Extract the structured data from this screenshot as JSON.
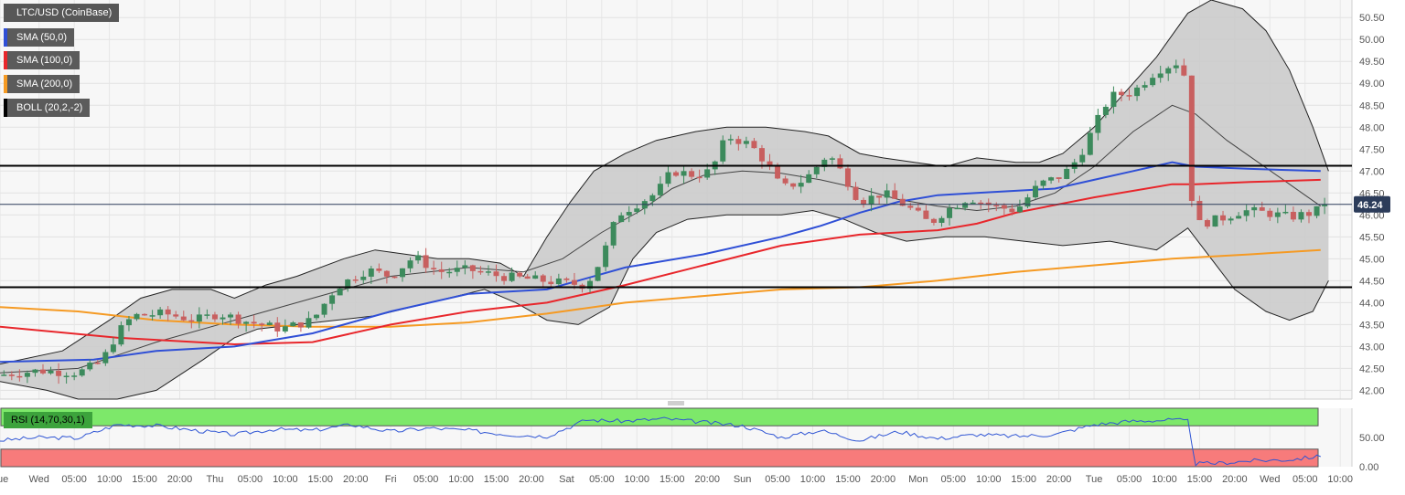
{
  "legend": {
    "instrument": "LTC/USD (CoinBase)",
    "sma50": "SMA (50,0)",
    "sma100": "SMA (100,0)",
    "sma200": "SMA (200,0)",
    "boll": "BOLL (20,2,-2)",
    "rsi": "RSI (14,70,30,1)"
  },
  "colors": {
    "sma50": "#2f4fd6",
    "sma100": "#e8262b",
    "sma200": "#f59a23",
    "bull": "#3c8a5c",
    "bear": "#c85f5f",
    "rsi_overbought": "#7de86a",
    "rsi_oversold": "#f77b7b",
    "rsi_line": "#2f55d4",
    "price_tag": "#2c3c5a"
  },
  "chart_data": [
    {
      "type": "candlestick",
      "title": "LTC/USD (CoinBase)",
      "ylim": [
        41.8,
        50.9
      ],
      "y_ticks": [
        "42.00",
        "42.50",
        "43.00",
        "43.50",
        "44.00",
        "44.50",
        "45.00",
        "45.50",
        "46.00",
        "46.50",
        "47.00",
        "47.50",
        "48.00",
        "48.50",
        "49.00",
        "49.50",
        "50.00",
        "50.50"
      ],
      "x_ticks": [
        "Tue",
        "Wed",
        "05:00",
        "10:00",
        "15:00",
        "20:00",
        "Thu",
        "05:00",
        "10:00",
        "15:00",
        "20:00",
        "Fri",
        "05:00",
        "10:00",
        "15:00",
        "20:00",
        "Sat",
        "05:00",
        "10:00",
        "15:00",
        "20:00",
        "Sun",
        "05:00",
        "10:00",
        "15:00",
        "20:00",
        "Mon",
        "05:00",
        "10:00",
        "15:00",
        "20:00",
        "Tue",
        "05:00",
        "10:00",
        "15:00",
        "20:00",
        "Wed",
        "05:00",
        "10:00"
      ],
      "x_range_hours": [
        0,
        173
      ],
      "last_price": "46.24",
      "last_price_value": 46.24,
      "horizontal_levels": [
        47.12,
        44.35
      ],
      "price_path": [
        [
          0,
          42.35
        ],
        [
          5,
          42.45
        ],
        [
          10,
          42.4
        ],
        [
          13,
          42.65
        ],
        [
          15,
          43.3
        ],
        [
          17,
          43.7
        ],
        [
          21,
          43.75
        ],
        [
          25,
          43.6
        ],
        [
          28,
          43.75
        ],
        [
          32,
          43.55
        ],
        [
          36,
          43.4
        ],
        [
          40,
          43.6
        ],
        [
          43,
          44.35
        ],
        [
          47,
          44.75
        ],
        [
          50,
          44.6
        ],
        [
          53,
          45.05
        ],
        [
          56,
          44.7
        ],
        [
          60,
          44.75
        ],
        [
          64,
          44.6
        ],
        [
          67,
          44.55
        ],
        [
          72,
          44.45
        ],
        [
          75,
          44.4
        ],
        [
          77,
          45.0
        ],
        [
          79,
          46.0
        ],
        [
          81,
          46.2
        ],
        [
          84,
          46.5
        ],
        [
          86,
          47.0
        ],
        [
          89,
          46.9
        ],
        [
          91,
          47.0
        ],
        [
          93,
          47.8
        ],
        [
          96,
          47.6
        ],
        [
          98,
          47.2
        ],
        [
          100,
          46.6
        ],
        [
          103,
          46.8
        ],
        [
          106,
          47.4
        ],
        [
          108,
          46.9
        ],
        [
          110,
          46.3
        ],
        [
          113,
          46.5
        ],
        [
          116,
          46.2
        ],
        [
          119,
          45.8
        ],
        [
          121,
          46.1
        ],
        [
          124,
          46.4
        ],
        [
          127,
          46.2
        ],
        [
          130,
          46.1
        ],
        [
          133,
          46.7
        ],
        [
          136,
          46.9
        ],
        [
          138,
          47.3
        ],
        [
          140,
          48.0
        ],
        [
          142,
          48.7
        ],
        [
          145,
          48.8
        ],
        [
          148,
          49.3
        ],
        [
          151,
          49.5
        ],
        [
          152,
          48.9
        ],
        [
          152.5,
          46.4
        ],
        [
          153.5,
          45.8
        ],
        [
          156,
          45.9
        ],
        [
          159,
          46.1
        ],
        [
          162,
          46.05
        ],
        [
          165,
          45.95
        ],
        [
          168,
          46.05
        ],
        [
          170,
          46.24
        ]
      ],
      "sma50": [
        [
          0,
          42.65
        ],
        [
          12,
          42.7
        ],
        [
          20,
          42.9
        ],
        [
          30,
          43.0
        ],
        [
          40,
          43.3
        ],
        [
          50,
          43.8
        ],
        [
          60,
          44.2
        ],
        [
          70,
          44.3
        ],
        [
          80,
          44.8
        ],
        [
          90,
          45.1
        ],
        [
          100,
          45.5
        ],
        [
          105,
          45.75
        ],
        [
          110,
          46.05
        ],
        [
          115,
          46.3
        ],
        [
          120,
          46.45
        ],
        [
          125,
          46.5
        ],
        [
          130,
          46.55
        ],
        [
          135,
          46.6
        ],
        [
          140,
          46.8
        ],
        [
          145,
          47.0
        ],
        [
          150,
          47.2
        ],
        [
          153,
          47.1
        ],
        [
          160,
          47.05
        ],
        [
          169,
          47.0
        ]
      ],
      "sma100": [
        [
          0,
          43.45
        ],
        [
          15,
          43.2
        ],
        [
          30,
          43.05
        ],
        [
          40,
          43.1
        ],
        [
          50,
          43.5
        ],
        [
          60,
          43.8
        ],
        [
          70,
          44.0
        ],
        [
          80,
          44.4
        ],
        [
          90,
          44.85
        ],
        [
          100,
          45.3
        ],
        [
          110,
          45.55
        ],
        [
          120,
          45.65
        ],
        [
          125,
          45.8
        ],
        [
          130,
          46.05
        ],
        [
          140,
          46.4
        ],
        [
          150,
          46.7
        ],
        [
          153,
          46.7
        ],
        [
          160,
          46.75
        ],
        [
          169,
          46.8
        ]
      ],
      "sma200": [
        [
          0,
          43.9
        ],
        [
          10,
          43.8
        ],
        [
          20,
          43.6
        ],
        [
          30,
          43.5
        ],
        [
          40,
          43.45
        ],
        [
          50,
          43.45
        ],
        [
          60,
          43.55
        ],
        [
          70,
          43.75
        ],
        [
          80,
          44.0
        ],
        [
          90,
          44.15
        ],
        [
          100,
          44.3
        ],
        [
          110,
          44.35
        ],
        [
          120,
          44.5
        ],
        [
          130,
          44.7
        ],
        [
          140,
          44.85
        ],
        [
          150,
          45.0
        ],
        [
          160,
          45.1
        ],
        [
          169,
          45.2
        ]
      ],
      "bollinger_upper": [
        [
          0,
          42.6
        ],
        [
          8,
          42.9
        ],
        [
          14,
          43.6
        ],
        [
          18,
          44.1
        ],
        [
          22,
          44.3
        ],
        [
          27,
          44.3
        ],
        [
          30,
          44.1
        ],
        [
          34,
          44.4
        ],
        [
          38,
          44.6
        ],
        [
          44,
          45.0
        ],
        [
          48,
          45.2
        ],
        [
          52,
          45.1
        ],
        [
          56,
          45.0
        ],
        [
          60,
          45.0
        ],
        [
          64,
          44.9
        ],
        [
          67,
          44.6
        ],
        [
          70,
          45.5
        ],
        [
          73,
          46.3
        ],
        [
          76,
          47.0
        ],
        [
          80,
          47.4
        ],
        [
          84,
          47.7
        ],
        [
          89,
          47.9
        ],
        [
          93,
          48.0
        ],
        [
          98,
          48.0
        ],
        [
          103,
          47.9
        ],
        [
          106,
          47.8
        ],
        [
          110,
          47.4
        ],
        [
          113,
          47.3
        ],
        [
          117,
          47.2
        ],
        [
          121,
          47.1
        ],
        [
          125,
          47.3
        ],
        [
          130,
          47.2
        ],
        [
          133,
          47.2
        ],
        [
          136,
          47.4
        ],
        [
          140,
          48.0
        ],
        [
          144,
          48.8
        ],
        [
          148,
          49.6
        ],
        [
          152,
          50.6
        ],
        [
          155,
          50.9
        ],
        [
          159,
          50.7
        ],
        [
          162,
          50.2
        ],
        [
          165,
          49.3
        ],
        [
          168,
          48.0
        ],
        [
          170,
          47.0
        ]
      ],
      "bollinger_middle": [
        [
          0,
          42.4
        ],
        [
          10,
          42.5
        ],
        [
          20,
          43.1
        ],
        [
          30,
          43.6
        ],
        [
          40,
          44.1
        ],
        [
          50,
          44.6
        ],
        [
          60,
          44.8
        ],
        [
          67,
          44.7
        ],
        [
          72,
          45.0
        ],
        [
          77,
          45.6
        ],
        [
          82,
          46.1
        ],
        [
          86,
          46.6
        ],
        [
          90,
          46.9
        ],
        [
          95,
          47.0
        ],
        [
          100,
          46.95
        ],
        [
          105,
          46.8
        ],
        [
          110,
          46.6
        ],
        [
          115,
          46.35
        ],
        [
          120,
          46.2
        ],
        [
          125,
          46.1
        ],
        [
          130,
          46.2
        ],
        [
          135,
          46.5
        ],
        [
          140,
          47.1
        ],
        [
          145,
          47.9
        ],
        [
          150,
          48.5
        ],
        [
          153,
          48.3
        ],
        [
          157,
          47.7
        ],
        [
          161,
          47.2
        ],
        [
          165,
          46.7
        ],
        [
          169,
          46.2
        ]
      ],
      "bollinger_lower": [
        [
          0,
          42.2
        ],
        [
          6,
          42.0
        ],
        [
          10,
          41.8
        ],
        [
          15,
          41.8
        ],
        [
          20,
          42.0
        ],
        [
          26,
          42.7
        ],
        [
          30,
          43.2
        ],
        [
          33,
          43.4
        ],
        [
          38,
          43.5
        ],
        [
          43,
          43.6
        ],
        [
          48,
          43.7
        ],
        [
          55,
          44.0
        ],
        [
          62,
          44.3
        ],
        [
          66,
          44.0
        ],
        [
          70,
          43.6
        ],
        [
          74,
          43.5
        ],
        [
          78,
          43.9
        ],
        [
          81,
          45.0
        ],
        [
          84,
          45.6
        ],
        [
          88,
          45.9
        ],
        [
          93,
          46.0
        ],
        [
          100,
          46.0
        ],
        [
          104,
          46.1
        ],
        [
          108,
          45.9
        ],
        [
          112,
          45.6
        ],
        [
          116,
          45.4
        ],
        [
          121,
          45.5
        ],
        [
          126,
          45.5
        ],
        [
          131,
          45.4
        ],
        [
          136,
          45.3
        ],
        [
          142,
          45.4
        ],
        [
          148,
          45.2
        ],
        [
          152,
          45.7
        ],
        [
          155,
          45.0
        ],
        [
          158,
          44.3
        ],
        [
          162,
          43.8
        ],
        [
          165,
          43.6
        ],
        [
          168,
          43.8
        ],
        [
          170,
          44.5
        ]
      ]
    },
    {
      "type": "line",
      "title": "RSI (14,70,30,1)",
      "ylim": [
        0,
        100
      ],
      "y_ticks": [
        "50.00",
        "0.00"
      ],
      "overbought_band": [
        70,
        100
      ],
      "oversold_band": [
        0,
        30
      ],
      "rsi": [
        [
          0,
          45
        ],
        [
          5,
          50
        ],
        [
          10,
          49
        ],
        [
          15,
          72
        ],
        [
          20,
          70
        ],
        [
          25,
          62
        ],
        [
          30,
          55
        ],
        [
          35,
          64
        ],
        [
          40,
          62
        ],
        [
          45,
          72
        ],
        [
          50,
          60
        ],
        [
          55,
          66
        ],
        [
          60,
          62
        ],
        [
          65,
          55
        ],
        [
          70,
          52
        ],
        [
          75,
          80
        ],
        [
          80,
          78
        ],
        [
          85,
          82
        ],
        [
          90,
          76
        ],
        [
          95,
          70
        ],
        [
          100,
          50
        ],
        [
          105,
          62
        ],
        [
          110,
          45
        ],
        [
          115,
          60
        ],
        [
          120,
          48
        ],
        [
          125,
          55
        ],
        [
          130,
          52
        ],
        [
          135,
          55
        ],
        [
          140,
          72
        ],
        [
          145,
          78
        ],
        [
          150,
          80
        ],
        [
          152,
          78
        ],
        [
          153,
          5
        ],
        [
          156,
          6
        ],
        [
          160,
          10
        ],
        [
          165,
          12
        ],
        [
          169,
          18
        ]
      ]
    }
  ]
}
